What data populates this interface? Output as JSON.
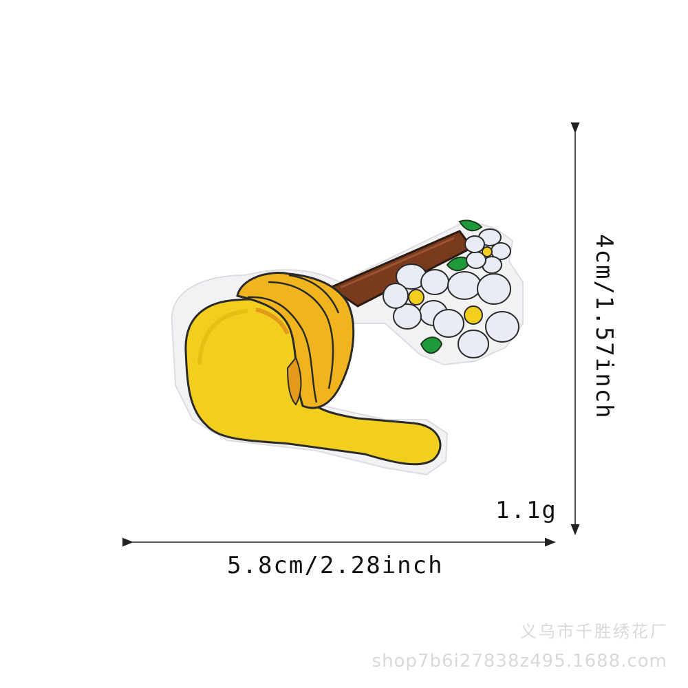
{
  "dimensions": {
    "width_text": "5.8cm/2.28inch",
    "height_text": "4cm/1.57inch",
    "weight_text": "1.1g"
  },
  "watermark": {
    "shop_name": "义乌市千胜绣花厂",
    "shop_url": "shop7b6i27838z495.1688.com"
  },
  "product": {
    "image_icon": "honey-dipper-with-flowers-embroidered-patch"
  }
}
